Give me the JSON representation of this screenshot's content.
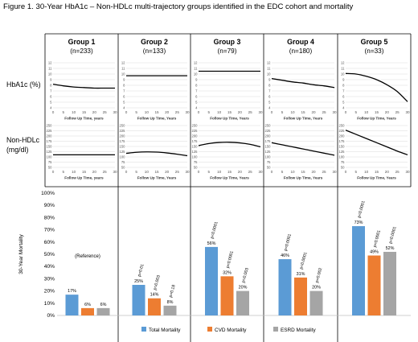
{
  "title": "Figure 1. 30-Year HbA1c – Non-HDLc multi-trajectory groups identified in the EDC cohort and mortality",
  "chart_data": {
    "type": "multi-panel",
    "groups": [
      {
        "name": "Group 1",
        "n": "(n=233)"
      },
      {
        "name": "Group 2",
        "n": "(n=133)"
      },
      {
        "name": "Group 3",
        "n": "(n=79)"
      },
      {
        "name": "Group 4",
        "n": "(n=180)"
      },
      {
        "name": "Group 5",
        "n": "(n=33)"
      }
    ],
    "x_ticks": [
      0,
      5,
      10,
      15,
      20,
      25,
      30
    ],
    "x_label": "Follow Up Time, years",
    "x_labels": [
      "Follow Up Time, years",
      "Follow Up Time, Years",
      "Follow Up Time, Years",
      "Follow Up Time, Years",
      "Follow Up Time, Years"
    ],
    "hba1c": {
      "label_lines": [
        "HbA1c (%)"
      ],
      "ylim": [
        4,
        12
      ],
      "y_ticks": [
        4,
        5,
        6,
        7,
        8,
        9,
        10,
        11,
        12
      ],
      "series": [
        {
          "x": [
            0,
            5,
            10,
            15,
            20,
            25,
            30
          ],
          "y": [
            8.2,
            7.9,
            7.7,
            7.6,
            7.5,
            7.5,
            7.5
          ]
        },
        {
          "x": [
            0,
            5,
            10,
            15,
            20,
            25,
            30
          ],
          "y": [
            9.7,
            9.7,
            9.7,
            9.7,
            9.7,
            9.7,
            9.7
          ]
        },
        {
          "x": [
            0,
            5,
            10,
            15,
            20,
            25,
            30
          ],
          "y": [
            10.5,
            10.5,
            10.5,
            10.5,
            10.5,
            10.5,
            10.5
          ]
        },
        {
          "x": [
            0,
            5,
            10,
            15,
            20,
            25,
            30
          ],
          "y": [
            9.2,
            8.9,
            8.6,
            8.4,
            8.1,
            7.9,
            7.6
          ]
        },
        {
          "x": [
            0,
            5,
            10,
            15,
            20,
            25,
            30
          ],
          "y": [
            10.1,
            10.0,
            9.6,
            9.0,
            8.1,
            6.9,
            5.1
          ]
        }
      ]
    },
    "nonhdl": {
      "label_lines": [
        "Non-HDLc",
        "(mg/dl)"
      ],
      "ylim": [
        50,
        250
      ],
      "y_ticks": [
        50,
        75,
        100,
        125,
        150,
        175,
        200,
        225,
        250
      ],
      "series": [
        {
          "x": [
            0,
            5,
            10,
            15,
            20,
            25,
            30
          ],
          "y": [
            110,
            110,
            110,
            110,
            110,
            110,
            110
          ]
        },
        {
          "x": [
            0,
            5,
            10,
            15,
            20,
            25,
            30
          ],
          "y": [
            117,
            122,
            124,
            123,
            119,
            113,
            106
          ]
        },
        {
          "x": [
            0,
            5,
            10,
            15,
            20,
            25,
            30
          ],
          "y": [
            154,
            164,
            169,
            170,
            167,
            160,
            148
          ]
        },
        {
          "x": [
            0,
            5,
            10,
            15,
            20,
            25,
            30
          ],
          "y": [
            168,
            158,
            148,
            138,
            128,
            118,
            108
          ]
        },
        {
          "x": [
            0,
            5,
            10,
            15,
            20,
            25,
            30
          ],
          "y": [
            228,
            208,
            188,
            168,
            148,
            128,
            110
          ]
        }
      ]
    },
    "mortality": {
      "ylabel": "30-Year Mortality",
      "ylim": [
        0,
        100
      ],
      "y_ticks": [
        "0%",
        "10%",
        "20%",
        "30%",
        "40%",
        "50%",
        "60%",
        "70%",
        "80%",
        "90%",
        "100%"
      ],
      "series": [
        {
          "name": "Total Mortality",
          "color": "#5b9bd5",
          "values": [
            17,
            25,
            56,
            46,
            73
          ],
          "labels": [
            "17%",
            "25%",
            "56%",
            "46%",
            "73%"
          ]
        },
        {
          "name": "CVD Mortality",
          "color": "#ed7d31",
          "values": [
            6,
            14,
            32,
            31,
            49
          ],
          "labels": [
            "6%",
            "14%",
            "32%",
            "31%",
            "49%"
          ]
        },
        {
          "name": "ESRD Mortality",
          "color": "#a5a5a5",
          "values": [
            6,
            8,
            20,
            20,
            52
          ],
          "labels": [
            "6%",
            "8%",
            "20%",
            "20%",
            "52%"
          ]
        }
      ],
      "p_values": [
        [],
        [
          "p=0.01",
          "p=0.003",
          "p=0.18"
        ],
        [
          "p<0.0001",
          "p<0.0001",
          "p=0.003"
        ],
        [
          "p<0.0001",
          "p<0.0001",
          "p=0.002"
        ],
        [
          "p<0.0001",
          "p<0.0001",
          "p<0.0001"
        ]
      ],
      "reference_label": "(Reference)",
      "legend_position": "bottom"
    }
  },
  "colors": {
    "line": "#000000",
    "grid": "#d9d9d9",
    "panel_border": "#000000"
  }
}
